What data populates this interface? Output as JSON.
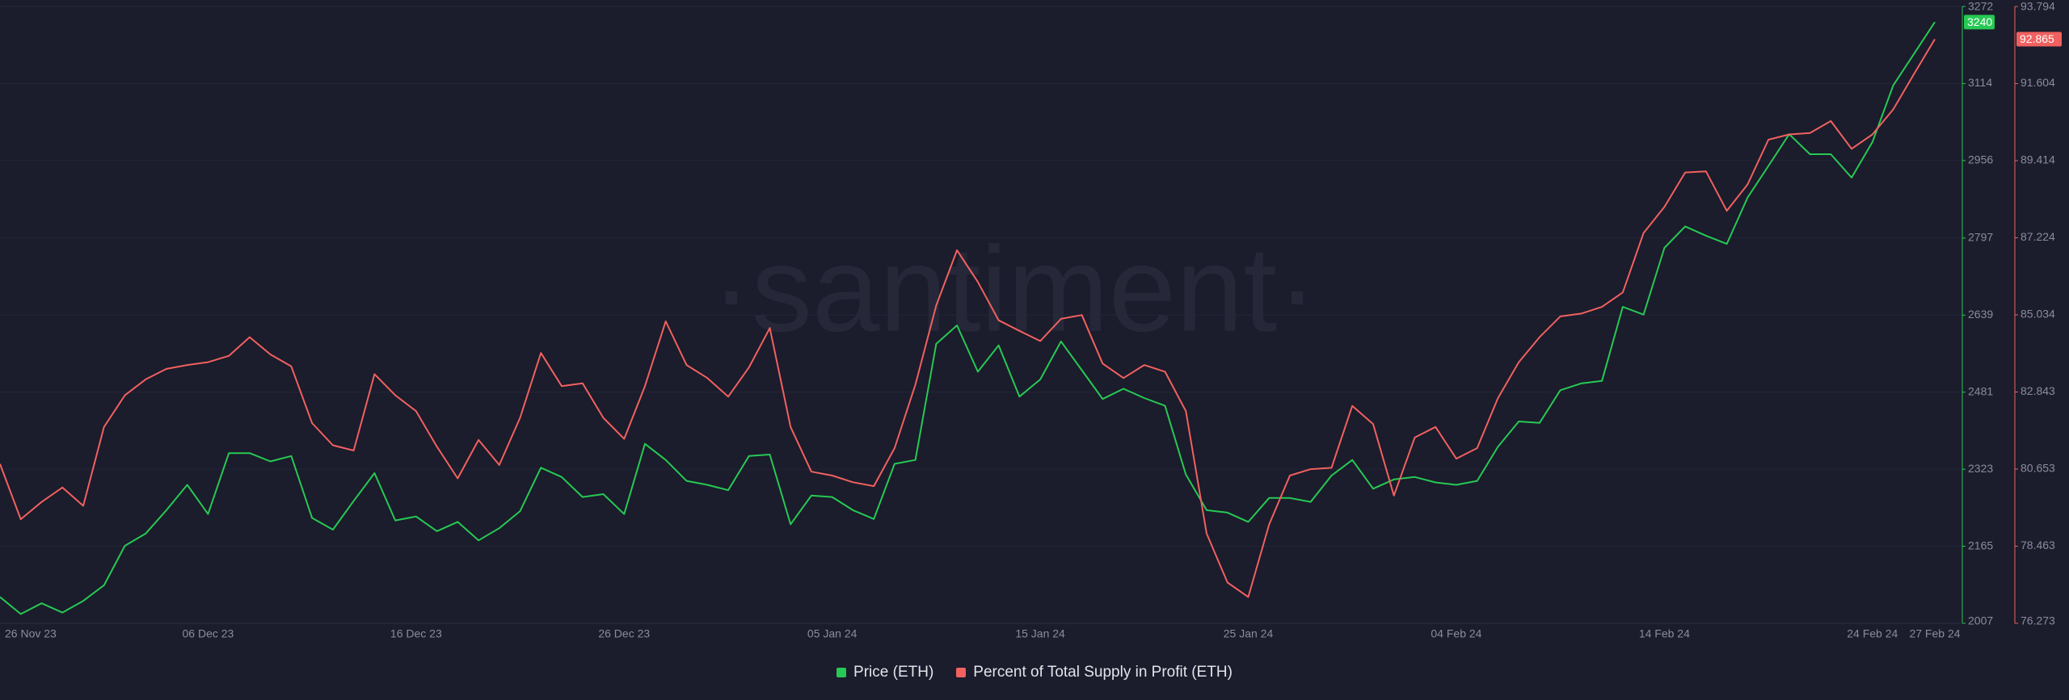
{
  "chart_data": {
    "type": "line",
    "watermark": "·santiment·",
    "categories": [
      "26 Nov 23",
      null,
      null,
      null,
      null,
      null,
      null,
      null,
      null,
      null,
      "06 Dec 23",
      null,
      null,
      null,
      null,
      null,
      null,
      null,
      null,
      null,
      "16 Dec 23",
      null,
      null,
      null,
      null,
      null,
      null,
      null,
      null,
      null,
      "26 Dec 23",
      null,
      null,
      null,
      null,
      null,
      null,
      null,
      null,
      null,
      "05 Jan 24",
      null,
      null,
      null,
      null,
      null,
      null,
      null,
      null,
      null,
      "15 Jan 24",
      null,
      null,
      null,
      null,
      null,
      null,
      null,
      null,
      null,
      "25 Jan 24",
      null,
      null,
      null,
      null,
      null,
      null,
      null,
      null,
      null,
      "04 Feb 24",
      null,
      null,
      null,
      null,
      null,
      null,
      null,
      null,
      null,
      "14 Feb 24",
      null,
      null,
      null,
      null,
      null,
      null,
      null,
      null,
      null,
      "24 Feb 24",
      null,
      null,
      "27 Feb 24"
    ],
    "series": [
      {
        "name": "Price (ETH)",
        "color": "#26c953",
        "values": [
          2061,
          2026,
          2048,
          2029,
          2053,
          2085,
          2166,
          2191,
          2239,
          2291,
          2231,
          2356,
          2356,
          2339,
          2350,
          2223,
          2199,
          2258,
          2315,
          2218,
          2226,
          2196,
          2215,
          2177,
          2202,
          2237,
          2326,
          2307,
          2266,
          2272,
          2231,
          2375,
          2342,
          2299,
          2291,
          2280,
          2350,
          2353,
          2210,
          2269,
          2266,
          2239,
          2221,
          2334,
          2342,
          2580,
          2618,
          2523,
          2577,
          2472,
          2507,
          2585,
          2526,
          2467,
          2488,
          2469,
          2453,
          2312,
          2239,
          2234,
          2215,
          2264,
          2264,
          2256,
          2310,
          2342,
          2283,
          2302,
          2307,
          2296,
          2291,
          2299,
          2369,
          2421,
          2418,
          2485,
          2499,
          2504,
          2656,
          2640,
          2777,
          2821,
          2802,
          2785,
          2880,
          2945,
          3010,
          2969,
          2969,
          2921,
          2994,
          3110,
          3175,
          3240
        ]
      },
      {
        "name": "Percent of Total Supply in Profit (ETH)",
        "color": "#f0615f",
        "axis": "y2",
        "values": [
          80.8,
          79.23,
          79.72,
          80.13,
          79.61,
          81.85,
          82.75,
          83.2,
          83.5,
          83.61,
          83.69,
          83.87,
          84.4,
          83.91,
          83.57,
          81.96,
          81.33,
          81.18,
          83.35,
          82.75,
          82.3,
          81.29,
          80.39,
          81.48,
          80.77,
          82.11,
          83.95,
          83.01,
          83.09,
          82.11,
          81.51,
          83.01,
          84.85,
          83.61,
          83.24,
          82.71,
          83.54,
          84.66,
          81.85,
          80.58,
          80.47,
          80.28,
          80.17,
          81.25,
          83.05,
          85.3,
          86.87,
          85.97,
          84.88,
          84.58,
          84.29,
          84.92,
          85.03,
          83.65,
          83.24,
          83.61,
          83.42,
          82.3,
          78.82,
          77.43,
          77.02,
          79.08,
          80.47,
          80.65,
          80.69,
          82.45,
          81.93,
          79.9,
          81.55,
          81.85,
          80.95,
          81.25,
          82.67,
          83.69,
          84.4,
          84.99,
          85.07,
          85.26,
          85.67,
          87.36,
          88.1,
          89.08,
          89.11,
          87.99,
          88.74,
          90.01,
          90.16,
          90.2,
          90.54,
          89.75,
          90.16,
          90.87,
          91.88,
          92.865
        ]
      }
    ],
    "ylim": [
      2007,
      3272
    ],
    "yticks": [
      2007,
      2165,
      2323,
      2481,
      2639,
      2797,
      2956,
      3114,
      3272
    ],
    "y2lim": [
      76.273,
      93.794
    ],
    "y2ticks": [
      76.273,
      78.463,
      80.653,
      82.843,
      85.034,
      87.224,
      89.414,
      91.604,
      93.794
    ],
    "grid": true
  }
}
